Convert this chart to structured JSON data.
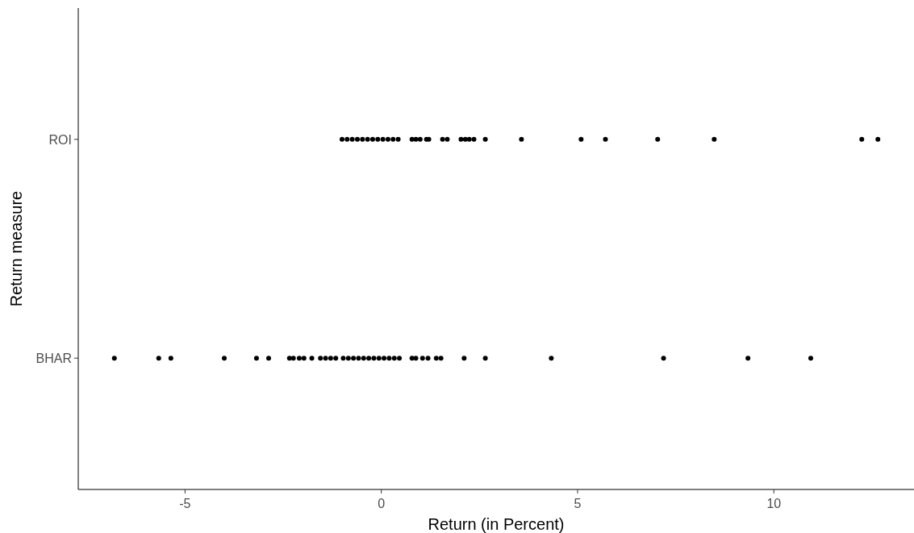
{
  "chart_data": {
    "type": "scatter",
    "orientation": "horizontal",
    "xlabel": "Return (in Percent)",
    "ylabel": "Return measure",
    "categories": [
      "ROI",
      "BHAR"
    ],
    "xlim": [
      -7.72,
      13.57
    ],
    "xticks": [
      -5,
      0,
      5,
      10
    ],
    "grid": false,
    "marker": "circle",
    "series": [
      {
        "color": "#000000",
        "x": [
          "ROI",
          "ROI",
          "ROI",
          "ROI",
          "ROI",
          "ROI",
          "ROI",
          "ROI",
          "ROI",
          "ROI",
          "ROI",
          "ROI",
          "ROI",
          "ROI",
          "ROI",
          "ROI",
          "ROI",
          "ROI",
          "ROI",
          "ROI",
          "ROI",
          "ROI",
          "ROI",
          "ROI",
          "ROI",
          "ROI",
          "ROI",
          "ROI",
          "ROI",
          "ROI",
          "ROI"
        ],
        "values": [
          -1.0,
          -0.87,
          -0.74,
          -0.61,
          -0.48,
          -0.35,
          -0.22,
          -0.09,
          0.04,
          0.17,
          0.3,
          0.43,
          0.78,
          0.88,
          0.99,
          1.15,
          1.21,
          1.56,
          1.68,
          2.03,
          2.14,
          2.24,
          2.36,
          2.65,
          3.57,
          5.09,
          5.71,
          7.04,
          8.48,
          12.24,
          12.65
        ]
      },
      {
        "color": "#000000",
        "x": [
          "BHAR",
          "BHAR",
          "BHAR",
          "BHAR",
          "BHAR",
          "BHAR",
          "BHAR",
          "BHAR",
          "BHAR",
          "BHAR",
          "BHAR",
          "BHAR",
          "BHAR",
          "BHAR",
          "BHAR",
          "BHAR",
          "BHAR",
          "BHAR",
          "BHAR",
          "BHAR",
          "BHAR",
          "BHAR",
          "BHAR",
          "BHAR",
          "BHAR",
          "BHAR",
          "BHAR",
          "BHAR",
          "BHAR",
          "BHAR",
          "BHAR",
          "BHAR",
          "BHAR",
          "BHAR",
          "BHAR",
          "BHAR",
          "BHAR"
        ],
        "values": [
          -6.8,
          -5.67,
          -5.36,
          -4.0,
          -3.18,
          -2.87,
          -2.34,
          -2.24,
          -2.09,
          -1.97,
          -1.77,
          -1.55,
          -1.42,
          -1.29,
          -1.16,
          -0.97,
          -0.84,
          -0.71,
          -0.58,
          -0.45,
          -0.32,
          -0.19,
          -0.06,
          0.07,
          0.2,
          0.33,
          0.46,
          0.78,
          0.88,
          1.05,
          1.19,
          1.4,
          1.52,
          2.11,
          2.65,
          4.33,
          7.19
        ]
      },
      {
        "color": "#000000",
        "x": [
          "BHAR",
          "BHAR"
        ],
        "values": [
          9.34,
          10.94
        ]
      }
    ]
  }
}
